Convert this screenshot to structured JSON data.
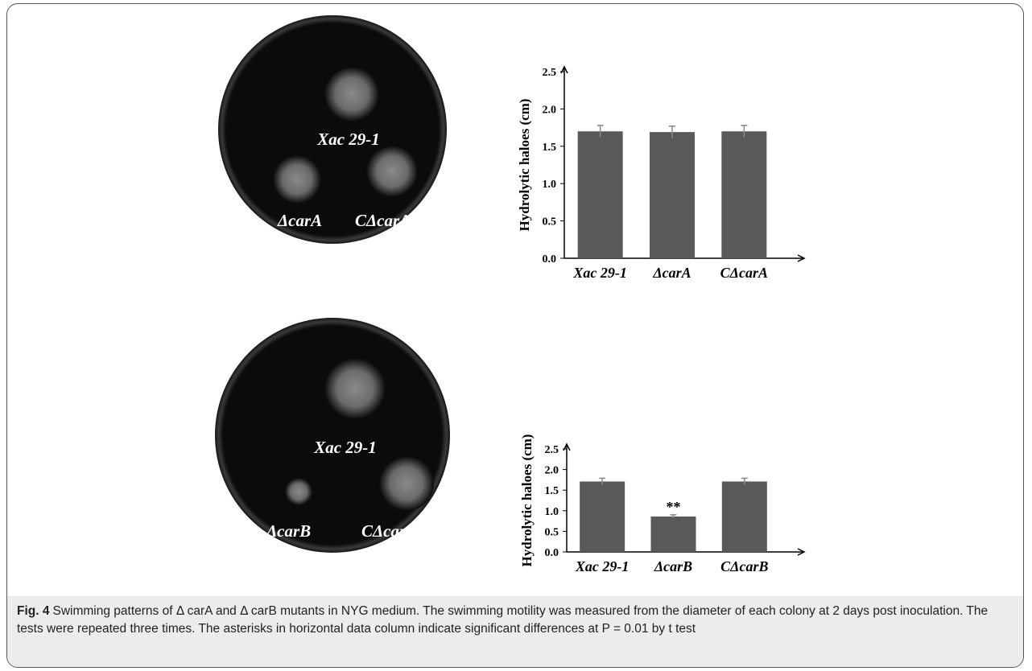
{
  "photos": [
    {
      "labels": [
        "Xac 29-1",
        "ΔcarA",
        "CΔcarA"
      ]
    },
    {
      "labels": [
        "Xac 29-1",
        "ΔcarB",
        "CΔcarB"
      ]
    }
  ],
  "chart_data": [
    {
      "type": "bar",
      "y_label": "Hydrolytic haloes (cm)",
      "categories": [
        "Xac 29-1",
        "ΔcarA",
        "CΔcarA"
      ],
      "values": [
        1.7,
        1.69,
        1.7
      ],
      "errors": [
        0.08,
        0.08,
        0.08
      ],
      "color": "#595959",
      "ylim": [
        0,
        2.5
      ],
      "yticks": [
        {
          "value": 0,
          "label": "0.0"
        },
        {
          "value": 0.5,
          "label": "0.5"
        },
        {
          "value": 1,
          "label": "1.0"
        },
        {
          "value": 1.5,
          "label": "1.5"
        },
        {
          "value": 2,
          "label": "2.0"
        },
        {
          "value": 2.5,
          "label": "2.5"
        }
      ]
    },
    {
      "type": "bar",
      "y_label": "Hydrolytic haloes (cm)",
      "categories": [
        "Xac 29-1",
        "ΔcarB",
        "CΔcarB"
      ],
      "values": [
        1.71,
        0.86,
        1.71
      ],
      "errors": [
        0.08,
        0.04,
        0.08
      ],
      "color": "#595959",
      "ylim": [
        0,
        2.5
      ],
      "yticks": [
        {
          "value": 0,
          "label": "0.0"
        },
        {
          "value": 0.5,
          "label": "0.5"
        },
        {
          "value": 1,
          "label": "1.0"
        },
        {
          "value": 1.5,
          "label": "1.5"
        },
        {
          "value": 2,
          "label": "2.0"
        },
        {
          "value": 2.5,
          "label": "2.5"
        }
      ],
      "annotations": [
        {
          "text": "**",
          "x": "ΔcarB"
        }
      ]
    }
  ],
  "caption": {
    "label": "Fig. 4",
    "text": "Swimming patterns of Δ carA and Δ carB mutants in NYG medium. The swimming motility was measured from the diameter of each colony at 2 days post inoculation. The tests were repeated three times. The asterisks in horizontal data column indicate significant differences at P = 0.01 by t test"
  }
}
